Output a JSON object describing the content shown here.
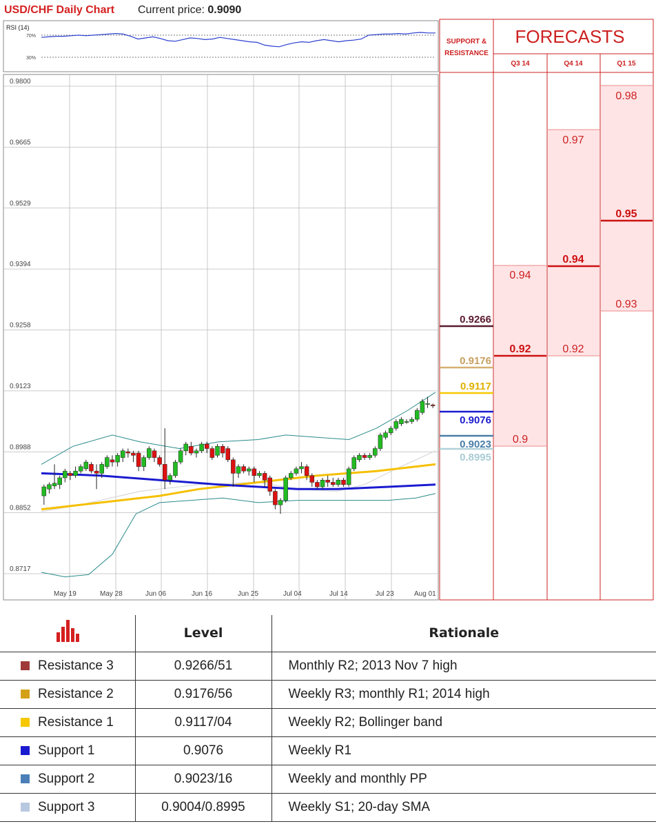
{
  "header": {
    "title": "USD/CHF Daily Chart",
    "price_label": "Current price: ",
    "price_value": "0.9090"
  },
  "forecast_panel": {
    "support_resistance_label_1": "SUPPORT &",
    "support_resistance_label_2": "RESISTANCE",
    "title": "FORECASTS",
    "quarters": [
      "Q3 14",
      "Q4 14",
      "Q1 15"
    ]
  },
  "chart_data": {
    "type": "candlestick",
    "title": "USD/CHF Daily Chart",
    "current_price": 0.909,
    "y_ticks": [
      "0.9800",
      "0.9665",
      "0.9529",
      "0.9394",
      "0.9258",
      "0.9123",
      "0.8988",
      "0.8852",
      "0.8717"
    ],
    "ylim": [
      0.8717,
      0.98
    ],
    "x_ticks": [
      "May 19",
      "May 28",
      "Jun 06",
      "Jun 16",
      "Jun 25",
      "Jul 04",
      "Jul 14",
      "Jul 23",
      "Aug 01"
    ],
    "candles": [
      [
        0.889,
        0.891,
        0.887,
        0.8915
      ],
      [
        0.8905,
        0.8915,
        0.8895,
        0.892
      ],
      [
        0.8912,
        0.8918,
        0.8905,
        0.896
      ],
      [
        0.8915,
        0.893,
        0.8905,
        0.8935
      ],
      [
        0.893,
        0.8945,
        0.892,
        0.895
      ],
      [
        0.894,
        0.8935,
        0.8925,
        0.8945
      ],
      [
        0.8935,
        0.8945,
        0.893,
        0.8955
      ],
      [
        0.8945,
        0.8955,
        0.894,
        0.896
      ],
      [
        0.895,
        0.8965,
        0.8945,
        0.897
      ],
      [
        0.896,
        0.8945,
        0.894,
        0.8965
      ],
      [
        0.8945,
        0.894,
        0.8905,
        0.896
      ],
      [
        0.894,
        0.896,
        0.893,
        0.8965
      ],
      [
        0.8955,
        0.8975,
        0.895,
        0.898
      ],
      [
        0.897,
        0.8965,
        0.8955,
        0.898
      ],
      [
        0.8965,
        0.898,
        0.8955,
        0.8985
      ],
      [
        0.8975,
        0.899,
        0.8965,
        0.8995
      ],
      [
        0.8988,
        0.8985,
        0.8975,
        0.8995
      ],
      [
        0.8985,
        0.898,
        0.8965,
        0.899
      ],
      [
        0.8985,
        0.8955,
        0.8945,
        0.899
      ],
      [
        0.8955,
        0.8975,
        0.8945,
        0.898
      ],
      [
        0.8975,
        0.8995,
        0.897,
        0.9
      ],
      [
        0.899,
        0.8975,
        0.8965,
        0.8995
      ],
      [
        0.8975,
        0.896,
        0.8955,
        0.898
      ],
      [
        0.896,
        0.8925,
        0.8905,
        0.904
      ],
      [
        0.8925,
        0.8935,
        0.8915,
        0.894
      ],
      [
        0.8935,
        0.8965,
        0.893,
        0.897
      ],
      [
        0.8965,
        0.899,
        0.896,
        0.8995
      ],
      [
        0.899,
        0.9005,
        0.898,
        0.901
      ],
      [
        0.9,
        0.8985,
        0.898,
        0.901
      ],
      [
        0.8985,
        0.899,
        0.8975,
        0.8995
      ],
      [
        0.899,
        0.9005,
        0.8985,
        0.901
      ],
      [
        0.9005,
        0.8995,
        0.8985,
        0.901
      ],
      [
        0.8995,
        0.8975,
        0.897,
        0.9
      ],
      [
        0.898,
        0.9,
        0.8975,
        0.9005
      ],
      [
        0.9,
        0.8985,
        0.8975,
        0.9005
      ],
      [
        0.8995,
        0.897,
        0.8965,
        0.9
      ],
      [
        0.897,
        0.894,
        0.891,
        0.8975
      ],
      [
        0.894,
        0.8955,
        0.893,
        0.896
      ],
      [
        0.8955,
        0.8945,
        0.894,
        0.896
      ],
      [
        0.8945,
        0.895,
        0.8935,
        0.8955
      ],
      [
        0.895,
        0.8935,
        0.892,
        0.8955
      ],
      [
        0.8935,
        0.894,
        0.893,
        0.8945
      ],
      [
        0.894,
        0.8925,
        0.891,
        0.8945
      ],
      [
        0.893,
        0.89,
        0.889,
        0.8935
      ],
      [
        0.89,
        0.887,
        0.886,
        0.8905
      ],
      [
        0.887,
        0.888,
        0.885,
        0.8885
      ],
      [
        0.888,
        0.893,
        0.8875,
        0.8935
      ],
      [
        0.893,
        0.894,
        0.8925,
        0.8945
      ],
      [
        0.894,
        0.895,
        0.8935,
        0.8955
      ],
      [
        0.895,
        0.8955,
        0.894,
        0.8965
      ],
      [
        0.8955,
        0.8935,
        0.8925,
        0.896
      ],
      [
        0.8935,
        0.892,
        0.891,
        0.894
      ],
      [
        0.892,
        0.891,
        0.8905,
        0.8925
      ],
      [
        0.891,
        0.8925,
        0.8905,
        0.893
      ],
      [
        0.8925,
        0.892,
        0.891,
        0.8935
      ],
      [
        0.892,
        0.8915,
        0.891,
        0.893
      ],
      [
        0.8915,
        0.8925,
        0.891,
        0.893
      ],
      [
        0.8925,
        0.8915,
        0.891,
        0.893
      ],
      [
        0.8915,
        0.895,
        0.891,
        0.8955
      ],
      [
        0.895,
        0.8975,
        0.8945,
        0.898
      ],
      [
        0.897,
        0.898,
        0.8965,
        0.8985
      ],
      [
        0.898,
        0.8975,
        0.897,
        0.8985
      ],
      [
        0.8975,
        0.898,
        0.897,
        0.8985
      ],
      [
        0.898,
        0.8995,
        0.8975,
        0.9
      ],
      [
        0.8995,
        0.9025,
        0.899,
        0.903
      ],
      [
        0.902,
        0.903,
        0.9015,
        0.9035
      ],
      [
        0.903,
        0.904,
        0.9025,
        0.9045
      ],
      [
        0.904,
        0.9055,
        0.9035,
        0.906
      ],
      [
        0.905,
        0.906,
        0.9045,
        0.9065
      ],
      [
        0.9055,
        0.9055,
        0.905,
        0.906
      ],
      [
        0.9055,
        0.906,
        0.905,
        0.9065
      ],
      [
        0.906,
        0.908,
        0.9055,
        0.9085
      ],
      [
        0.9075,
        0.91,
        0.907,
        0.9105
      ],
      [
        0.9095,
        0.9095,
        0.9085,
        0.911
      ],
      [
        0.9092,
        0.909,
        0.9085,
        0.9095
      ]
    ],
    "sma_blue": [
      [
        0,
        0.894
      ],
      [
        0.15,
        0.8935
      ],
      [
        0.3,
        0.8925
      ],
      [
        0.45,
        0.8915
      ],
      [
        0.55,
        0.891
      ],
      [
        0.65,
        0.8905
      ],
      [
        0.75,
        0.8905
      ],
      [
        0.88,
        0.891
      ],
      [
        1.0,
        0.8915
      ]
    ],
    "sma_yellow": [
      [
        0,
        0.886
      ],
      [
        0.15,
        0.8875
      ],
      [
        0.3,
        0.889
      ],
      [
        0.4,
        0.8905
      ],
      [
        0.55,
        0.892
      ],
      [
        0.7,
        0.8935
      ],
      [
        0.85,
        0.8945
      ],
      [
        1.0,
        0.896
      ]
    ],
    "bb_upper": [
      [
        0,
        0.896
      ],
      [
        0.08,
        0.9
      ],
      [
        0.18,
        0.9025
      ],
      [
        0.25,
        0.901
      ],
      [
        0.35,
        0.8995
      ],
      [
        0.45,
        0.901
      ],
      [
        0.55,
        0.9015
      ],
      [
        0.62,
        0.9025
      ],
      [
        0.7,
        0.902
      ],
      [
        0.78,
        0.9015
      ],
      [
        0.85,
        0.904
      ],
      [
        0.93,
        0.908
      ],
      [
        1.0,
        0.912
      ]
    ],
    "bb_lower": [
      [
        0,
        0.872
      ],
      [
        0.06,
        0.871
      ],
      [
        0.12,
        0.8715
      ],
      [
        0.18,
        0.876
      ],
      [
        0.24,
        0.885
      ],
      [
        0.3,
        0.8875
      ],
      [
        0.38,
        0.888
      ],
      [
        0.46,
        0.8885
      ],
      [
        0.55,
        0.8875
      ],
      [
        0.65,
        0.888
      ],
      [
        0.75,
        0.888
      ],
      [
        0.88,
        0.888
      ],
      [
        0.95,
        0.8885
      ],
      [
        1.0,
        0.8895
      ]
    ],
    "bb_mid": [
      [
        0,
        0.8855
      ],
      [
        0.1,
        0.887
      ],
      [
        0.25,
        0.89
      ],
      [
        0.4,
        0.8915
      ],
      [
        0.55,
        0.892
      ],
      [
        0.65,
        0.8905
      ],
      [
        0.75,
        0.89
      ],
      [
        0.82,
        0.8915
      ],
      [
        0.9,
        0.895
      ],
      [
        1.0,
        0.899
      ]
    ],
    "rsi": {
      "label": "RSI (14)",
      "levels": [
        "70%",
        "30%"
      ],
      "values": [
        66,
        67,
        68,
        68,
        69,
        70,
        69,
        70,
        71,
        72,
        73,
        72,
        68,
        63,
        65,
        67,
        64,
        60,
        59,
        62,
        65,
        64,
        62,
        63,
        66,
        64,
        62,
        60,
        58,
        57,
        52,
        50,
        49,
        53,
        56,
        58,
        57,
        60,
        62,
        60,
        58,
        60,
        61,
        63,
        70,
        71,
        72,
        72,
        73,
        72,
        74,
        75,
        74,
        74
      ]
    }
  },
  "levels": {
    "r3": {
      "value": "0.9266",
      "price": 0.9266,
      "color": "#5a1a2e"
    },
    "r2": {
      "value": "0.9176",
      "price": 0.9176,
      "color": "#d4b070"
    },
    "r1": {
      "value": "0.9117",
      "price": 0.9117,
      "color": "#f5c800"
    },
    "s1": {
      "value": "0.9076",
      "price": 0.9076,
      "color": "#1a1ad0"
    },
    "s2": {
      "value": "0.9023",
      "price": 0.9023,
      "color": "#4a7fa8"
    },
    "s3": {
      "value": "0.8995",
      "price": 0.8995,
      "color": "#b0d0d8"
    }
  },
  "forecasts": {
    "q3_14": {
      "high": "0.94",
      "mid": "0.92",
      "low": "0.9"
    },
    "q4_14": {
      "high": "0.97",
      "mid": "0.94",
      "low": "0.92"
    },
    "q1_15": {
      "high": "0.98",
      "mid": "0.95",
      "low": "0.93"
    }
  },
  "table": {
    "icon": "bar-chart-icon",
    "headers": {
      "level": "Level",
      "rationale": "Rationale"
    },
    "rows": [
      {
        "name": "Resistance 3",
        "level": "0.9266/51",
        "rationale": "Monthly R2; 2013 Nov 7 high",
        "color": "#a03a3a"
      },
      {
        "name": "Resistance 2",
        "level": "0.9176/56",
        "rationale": "Weekly R3; monthly R1; 2014 high",
        "color": "#d4a017"
      },
      {
        "name": "Resistance 1",
        "level": "0.9117/04",
        "rationale": "Weekly R2; Bollinger band",
        "color": "#f5c800"
      },
      {
        "name": "Support 1",
        "level": "0.9076",
        "rationale": "Weekly R1",
        "color": "#1a1ad0"
      },
      {
        "name": "Support 2",
        "level": "0.9023/16",
        "rationale": "Weekly and monthly PP",
        "color": "#4a7fb8"
      },
      {
        "name": "Support 3",
        "level": "0.9004/0.8995",
        "rationale": "Weekly S1; 20-day SMA",
        "color": "#b8c8e0"
      }
    ]
  }
}
